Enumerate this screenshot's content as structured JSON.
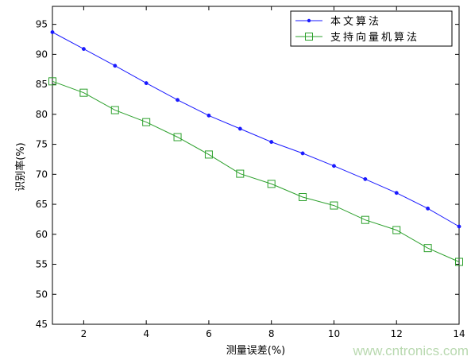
{
  "chart_data": {
    "type": "line",
    "title": "",
    "xlabel": "测量误差(%)",
    "ylabel": "识别率(%)",
    "xlim": [
      1,
      14
    ],
    "ylim": [
      45,
      98
    ],
    "xticks": [
      2,
      4,
      6,
      8,
      10,
      12,
      14
    ],
    "yticks": [
      45,
      50,
      55,
      60,
      65,
      70,
      75,
      80,
      85,
      90,
      95
    ],
    "grid": false,
    "legend_position": "top-right",
    "x": [
      1,
      2,
      3,
      4,
      5,
      6,
      7,
      8,
      9,
      10,
      11,
      12,
      13,
      14
    ],
    "series": [
      {
        "name": "本文算法",
        "color": "#1a1aff",
        "marker": "dot",
        "values": [
          93.7,
          90.9,
          88.1,
          85.2,
          82.4,
          79.8,
          77.6,
          75.4,
          73.5,
          71.4,
          69.2,
          66.9,
          64.3,
          61.3
        ]
      },
      {
        "name": "支持向量机算法",
        "color": "#2ca02c",
        "marker": "square",
        "values": [
          85.5,
          83.6,
          80.7,
          78.7,
          76.2,
          73.3,
          70.1,
          68.4,
          66.2,
          64.8,
          62.4,
          60.7,
          57.7,
          55.4
        ]
      }
    ]
  },
  "watermark": "www.cntronics.com"
}
